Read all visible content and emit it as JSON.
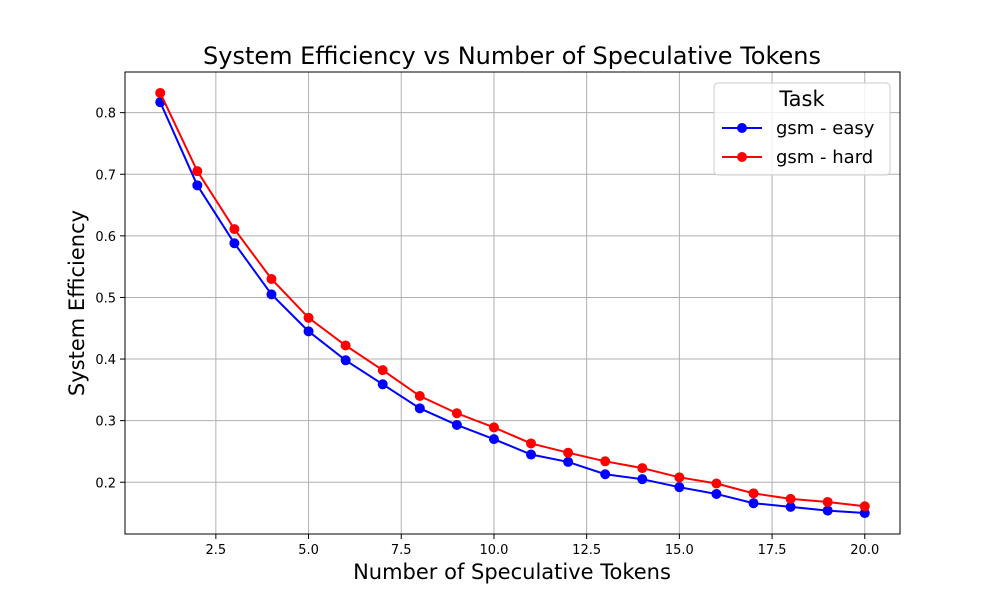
{
  "chart_data": {
    "type": "line",
    "title": "System Efficiency vs Number of Speculative Tokens",
    "xlabel": "Number of Speculative Tokens",
    "ylabel": "System Efficiency",
    "xlim": [
      0.05,
      20.95
    ],
    "ylim": [
      0.116,
      0.866
    ],
    "xticks": [
      2.5,
      5.0,
      7.5,
      10.0,
      12.5,
      15.0,
      17.5,
      20.0
    ],
    "xtick_labels": [
      "2.5",
      "5.0",
      "7.5",
      "10.0",
      "12.5",
      "15.0",
      "17.5",
      "20.0"
    ],
    "yticks": [
      0.2,
      0.3,
      0.4,
      0.5,
      0.6,
      0.7,
      0.8
    ],
    "ytick_labels": [
      "0.2",
      "0.3",
      "0.4",
      "0.5",
      "0.6",
      "0.7",
      "0.8"
    ],
    "grid": true,
    "legend": {
      "title": "Task",
      "placement": "top-right"
    },
    "x": [
      1,
      2,
      3,
      4,
      5,
      6,
      7,
      8,
      9,
      10,
      11,
      12,
      13,
      14,
      15,
      16,
      17,
      18,
      19,
      20
    ],
    "series": [
      {
        "name": "gsm - easy",
        "color": "#0000ff",
        "values": [
          0.817,
          0.682,
          0.588,
          0.505,
          0.445,
          0.398,
          0.359,
          0.32,
          0.293,
          0.27,
          0.245,
          0.233,
          0.213,
          0.205,
          0.192,
          0.181,
          0.166,
          0.16,
          0.154,
          0.15
        ]
      },
      {
        "name": "gsm - hard",
        "color": "#ff0000",
        "values": [
          0.832,
          0.705,
          0.611,
          0.53,
          0.467,
          0.422,
          0.382,
          0.34,
          0.312,
          0.289,
          0.263,
          0.248,
          0.234,
          0.223,
          0.208,
          0.198,
          0.182,
          0.173,
          0.168,
          0.161
        ]
      }
    ]
  }
}
